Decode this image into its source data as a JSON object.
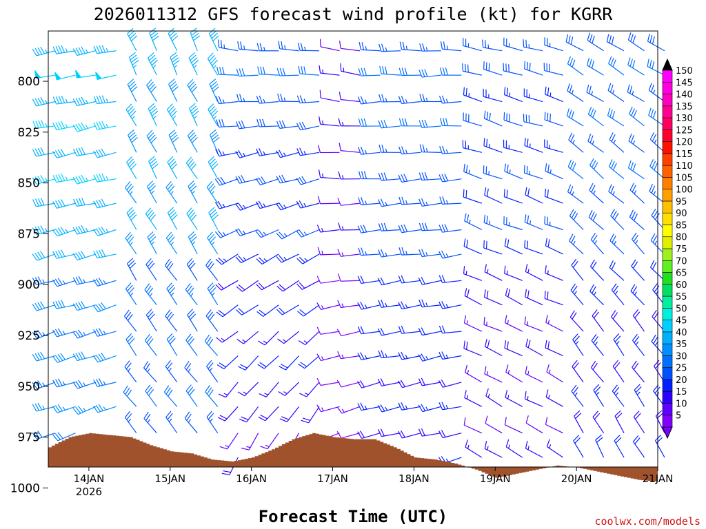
{
  "chart_data": {
    "type": "wind_barb_profile",
    "title": "2026011312 GFS forecast wind profile (kt) for KGRR",
    "xlabel": "Forecast Time (UTC)",
    "ylabel": "",
    "credit": "coolwx.com/models",
    "y_ticks": [
      "800",
      "825",
      "850",
      "875",
      "900",
      "925",
      "950",
      "975",
      "1000"
    ],
    "y_tick_values": [
      800,
      825,
      850,
      875,
      900,
      925,
      950,
      975,
      1000
    ],
    "ylim": [
      775,
      1000
    ],
    "x_ticks": [
      "14JAN",
      "15JAN",
      "16JAN",
      "17JAN",
      "18JAN",
      "19JAN",
      "20JAN",
      "21JAN"
    ],
    "x_tick_hours": [
      12,
      36,
      60,
      84,
      108,
      132,
      156,
      180
    ],
    "x_sublabel": "2026",
    "xlim_hours": [
      0,
      180
    ],
    "levels_hpa": [
      785,
      797,
      810,
      822,
      835,
      848,
      860,
      873,
      885,
      898,
      910,
      923,
      935,
      948,
      960,
      973,
      985
    ],
    "wind_time_step_hours": 6,
    "colorbar_levels": [
      "5",
      "10",
      "15",
      "20",
      "25",
      "30",
      "35",
      "40",
      "45",
      "50",
      "55",
      "60",
      "65",
      "70",
      "75",
      "80",
      "85",
      "90",
      "95",
      "100",
      "105",
      "110",
      "115",
      "120",
      "125",
      "130",
      "135",
      "140",
      "145",
      "150"
    ],
    "colorbar_colors": [
      "#8000ff",
      "#6000ff",
      "#3000ff",
      "#0020ff",
      "#0050ff",
      "#0070ff",
      "#0090ff",
      "#00b0ff",
      "#00d0ff",
      "#00f0e0",
      "#00f0a0",
      "#00e060",
      "#20e020",
      "#60f020",
      "#a0f020",
      "#e0f000",
      "#ffff00",
      "#ffe000",
      "#ffc000",
      "#ffa000",
      "#ff8000",
      "#ff6000",
      "#ff4000",
      "#ff1000",
      "#ff0030",
      "#ff0060",
      "#ff0090",
      "#ff00c0",
      "#ff00e0",
      "#ff00ff"
    ],
    "surface_pressure_hourly": [
      {
        "t": 0,
        "p": 980
      },
      {
        "t": 6,
        "p": 975
      },
      {
        "t": 12,
        "p": 973
      },
      {
        "t": 18,
        "p": 974
      },
      {
        "t": 24,
        "p": 975
      },
      {
        "t": 30,
        "p": 979
      },
      {
        "t": 36,
        "p": 982
      },
      {
        "t": 42,
        "p": 983
      },
      {
        "t": 48,
        "p": 986
      },
      {
        "t": 54,
        "p": 987
      },
      {
        "t": 60,
        "p": 985
      },
      {
        "t": 66,
        "p": 981
      },
      {
        "t": 72,
        "p": 976
      },
      {
        "t": 78,
        "p": 973
      },
      {
        "t": 84,
        "p": 975
      },
      {
        "t": 90,
        "p": 976
      },
      {
        "t": 96,
        "p": 976
      },
      {
        "t": 102,
        "p": 980
      },
      {
        "t": 108,
        "p": 985
      },
      {
        "t": 114,
        "p": 986
      },
      {
        "t": 120,
        "p": 988
      },
      {
        "t": 126,
        "p": 991
      },
      {
        "t": 132,
        "p": 995
      },
      {
        "t": 138,
        "p": 993
      },
      {
        "t": 144,
        "p": 991
      },
      {
        "t": 150,
        "p": 989
      },
      {
        "t": 156,
        "p": 990
      },
      {
        "t": 162,
        "p": 992
      },
      {
        "t": 168,
        "p": 994
      },
      {
        "t": 174,
        "p": 996
      },
      {
        "t": 180,
        "p": 997
      }
    ],
    "wind_regimes": [
      {
        "t_start": 0,
        "t_end": 18,
        "dir_surface": 250,
        "dir_aloft": 260,
        "spd_surface": 32,
        "spd_aloft": 48
      },
      {
        "t_start": 24,
        "t_end": 48,
        "dir_surface": 320,
        "dir_aloft": 335,
        "spd_surface": 25,
        "spd_aloft": 45
      },
      {
        "t_start": 54,
        "t_end": 78,
        "dir_surface": 210,
        "dir_aloft": 275,
        "spd_surface": 15,
        "spd_aloft": 30
      },
      {
        "t_start": 84,
        "t_end": 90,
        "dir_surface": 250,
        "dir_aloft": 280,
        "spd_surface": 10,
        "spd_aloft": 15
      },
      {
        "t_start": 96,
        "t_end": 120,
        "dir_surface": 255,
        "dir_aloft": 270,
        "spd_surface": 20,
        "spd_aloft": 30
      },
      {
        "t_start": 126,
        "t_end": 150,
        "dir_surface": 300,
        "dir_aloft": 285,
        "spd_surface": 12,
        "spd_aloft": 30
      },
      {
        "t_start": 156,
        "t_end": 180,
        "dir_surface": 330,
        "dir_aloft": 300,
        "spd_surface": 18,
        "spd_aloft": 32
      }
    ],
    "terrain_color": "#a0522d"
  }
}
